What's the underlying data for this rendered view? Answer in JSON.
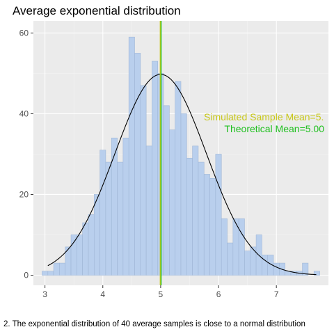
{
  "chart_data": {
    "type": "bar",
    "title": "Average exponential distribution",
    "caption": "2. The exponential distribution of 40 average samples is close to a normal distribution",
    "xlabel": "",
    "ylabel": "",
    "xlim": [
      2.8,
      7.9
    ],
    "ylim": [
      -2.5,
      63
    ],
    "x_ticks": [
      3,
      4,
      5,
      6,
      7
    ],
    "y_ticks": [
      0,
      20,
      40,
      60
    ],
    "bin_width": 0.1,
    "bins": [
      {
        "x": 3.0,
        "count": 1
      },
      {
        "x": 3.1,
        "count": 1
      },
      {
        "x": 3.2,
        "count": 3
      },
      {
        "x": 3.3,
        "count": 3
      },
      {
        "x": 3.4,
        "count": 7
      },
      {
        "x": 3.5,
        "count": 10
      },
      {
        "x": 3.6,
        "count": 10
      },
      {
        "x": 3.7,
        "count": 13
      },
      {
        "x": 3.8,
        "count": 15
      },
      {
        "x": 3.9,
        "count": 20
      },
      {
        "x": 4.0,
        "count": 31
      },
      {
        "x": 4.1,
        "count": 28
      },
      {
        "x": 4.2,
        "count": 34
      },
      {
        "x": 4.3,
        "count": 28
      },
      {
        "x": 4.4,
        "count": 34
      },
      {
        "x": 4.5,
        "count": 59
      },
      {
        "x": 4.6,
        "count": 55
      },
      {
        "x": 4.7,
        "count": 47
      },
      {
        "x": 4.8,
        "count": 32
      },
      {
        "x": 4.9,
        "count": 53
      },
      {
        "x": 5.0,
        "count": 50
      },
      {
        "x": 5.1,
        "count": 42
      },
      {
        "x": 5.2,
        "count": 36
      },
      {
        "x": 5.3,
        "count": 48
      },
      {
        "x": 5.4,
        "count": 40
      },
      {
        "x": 5.5,
        "count": 29
      },
      {
        "x": 5.6,
        "count": 32
      },
      {
        "x": 5.7,
        "count": 28
      },
      {
        "x": 5.8,
        "count": 25
      },
      {
        "x": 5.9,
        "count": 24
      },
      {
        "x": 6.0,
        "count": 30
      },
      {
        "x": 6.1,
        "count": 14
      },
      {
        "x": 6.2,
        "count": 8
      },
      {
        "x": 6.3,
        "count": 14
      },
      {
        "x": 6.4,
        "count": 14
      },
      {
        "x": 6.5,
        "count": 6
      },
      {
        "x": 6.6,
        "count": 7
      },
      {
        "x": 6.7,
        "count": 10
      },
      {
        "x": 6.8,
        "count": 5
      },
      {
        "x": 6.9,
        "count": 5
      },
      {
        "x": 7.0,
        "count": 3
      },
      {
        "x": 7.1,
        "count": 3
      },
      {
        "x": 7.2,
        "count": 1
      },
      {
        "x": 7.3,
        "count": 1
      },
      {
        "x": 7.4,
        "count": 1
      },
      {
        "x": 7.5,
        "count": 3
      },
      {
        "x": 7.6,
        "count": 0
      },
      {
        "x": 7.7,
        "count": 1
      }
    ],
    "density_curve": {
      "type": "normal",
      "mean": 5.0,
      "sd": 0.79,
      "scale": 98.5,
      "x_range": [
        3.05,
        7.7
      ]
    },
    "vlines": [
      {
        "x": 5.0,
        "color": "#c8c81a",
        "label": "Simulated Sample Mean=5."
      },
      {
        "x": 5.0,
        "color": "#20c020",
        "label": "Theoretical Mean=5.00"
      }
    ],
    "colors": {
      "panel": "#ebebeb",
      "grid_major": "#ffffff",
      "grid_minor": "#f4f4f4",
      "bar_fill": "#b9cfed",
      "bar_stroke": "#9fb6d6",
      "curve": "#000000",
      "tick_text": "#4d4d4d"
    },
    "grid": true
  }
}
